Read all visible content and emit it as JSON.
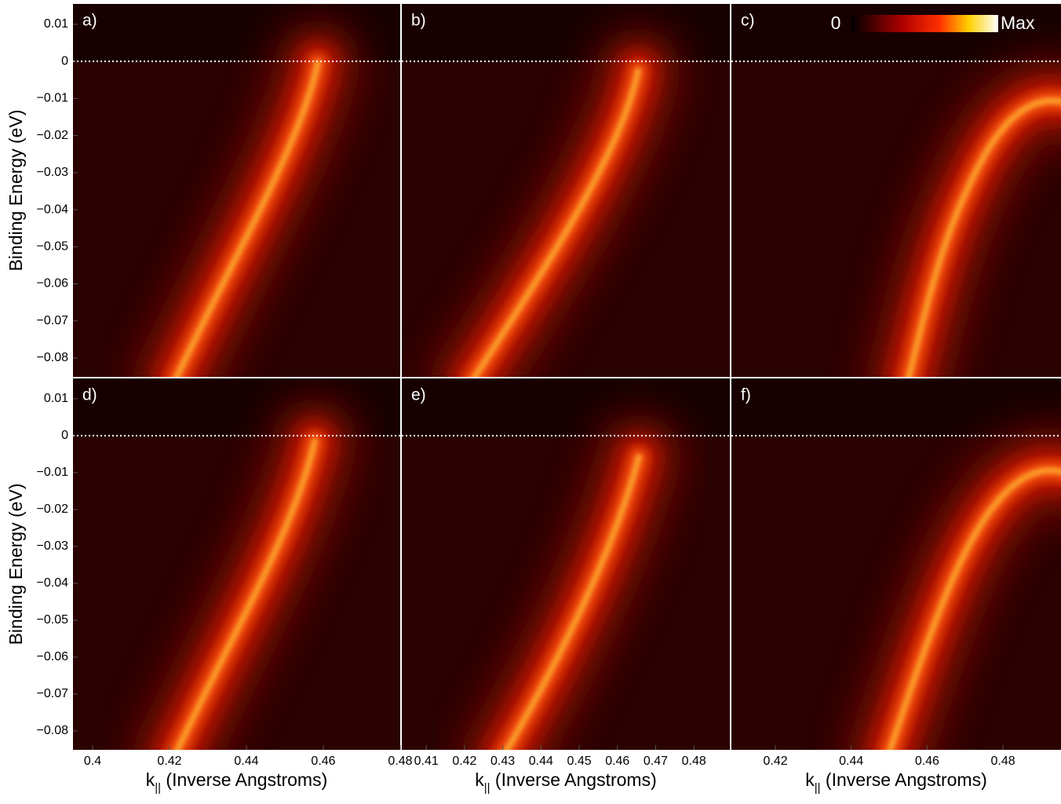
{
  "chart_data": [
    {
      "type": "heatmap",
      "label": "a)",
      "ylim": [
        -0.0851,
        0.0155
      ],
      "ylabel": "Binding Energy (eV)",
      "yticks": [
        0.01,
        0,
        {
          "value": -0.01,
          "label": "−0.01"
        },
        {
          "value": -0.02,
          "label": "−0.02"
        },
        {
          "value": -0.03,
          "label": "−0.03"
        },
        {
          "value": -0.04,
          "label": "−0.04"
        },
        {
          "value": -0.05,
          "label": "−0.05"
        },
        {
          "value": -0.06,
          "label": "−0.06"
        },
        {
          "value": -0.07,
          "label": "−0.07"
        },
        {
          "value": -0.08,
          "label": "−0.08"
        }
      ],
      "fermi_level": 0
    },
    {
      "type": "heatmap",
      "label": "b)",
      "ylim": [
        -0.0851,
        0.0155
      ],
      "fermi_level": 0
    },
    {
      "type": "heatmap",
      "label": "c)",
      "ylim": [
        -0.0851,
        0.0155
      ],
      "fermi_level": 0,
      "colorbar": {
        "min_label": "0",
        "max_label": "Max"
      }
    },
    {
      "type": "heatmap",
      "label": "d)",
      "ylim": [
        -0.0851,
        0.0155
      ],
      "ylabel": "Binding Energy (eV)",
      "yticks": [
        0.01,
        0,
        {
          "value": -0.01,
          "label": "−0.01"
        },
        {
          "value": -0.02,
          "label": "−0.02"
        },
        {
          "value": -0.03,
          "label": "−0.03"
        },
        {
          "value": -0.04,
          "label": "−0.04"
        },
        {
          "value": -0.05,
          "label": "−0.05"
        },
        {
          "value": -0.06,
          "label": "−0.06"
        },
        {
          "value": -0.07,
          "label": "−0.07"
        },
        {
          "value": -0.08,
          "label": "−0.08"
        }
      ],
      "fermi_level": 0,
      "xlim": [
        0.3949,
        0.48
      ],
      "xticks": [
        0.4,
        0.42,
        0.44,
        0.46,
        0.48
      ],
      "xlabel": {
        "symbol": "k",
        "subscript": "||",
        "text": " (Inverse Angstroms)"
      }
    },
    {
      "type": "heatmap",
      "label": "e)",
      "ylim": [
        -0.0851,
        0.0155
      ],
      "fermi_level": 0,
      "xlim": [
        0.4036,
        0.4894
      ],
      "xticks": [
        0.41,
        0.42,
        0.43,
        0.44,
        0.45,
        0.46,
        0.47,
        0.48
      ],
      "xlabel": {
        "symbol": "k",
        "subscript": "||",
        "text": " (Inverse Angstroms)"
      }
    },
    {
      "type": "heatmap",
      "label": "f)",
      "ylim": [
        -0.0851,
        0.0155
      ],
      "fermi_level": 0,
      "xlim": [
        0.4084,
        0.4953
      ],
      "xticks": [
        0.42,
        0.44,
        0.46,
        0.48
      ],
      "xlabel": {
        "symbol": "k",
        "subscript": "||",
        "text": " (Inverse Angstroms)"
      }
    }
  ]
}
